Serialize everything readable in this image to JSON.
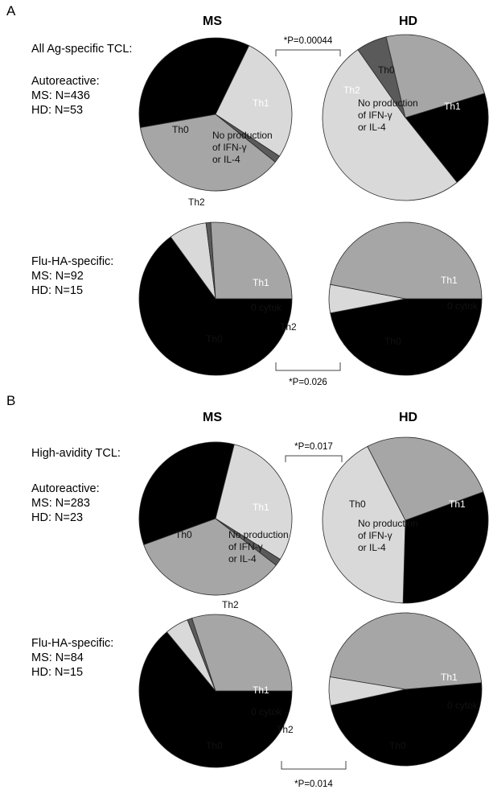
{
  "panels": [
    {
      "letter": "A",
      "col_ms": "MS",
      "col_hd": "HD",
      "rows": [
        {
          "heading": "All Ag-specific TCL:",
          "group": "Autoreactive:",
          "n_ms": "MS: N=436",
          "n_hd": "HD: N=53",
          "pvalue": "*P=0.00044"
        },
        {
          "heading": "",
          "group": "Flu-HA-specific:",
          "n_ms": "MS: N=92",
          "n_hd": "HD: N=15",
          "pvalue": "*P=0.026"
        }
      ]
    },
    {
      "letter": "B",
      "col_ms": "MS",
      "col_hd": "HD",
      "rows": [
        {
          "heading": "High-avidity TCL:",
          "group": "Autoreactive:",
          "n_ms": "MS: N=283",
          "n_hd": "HD: N=23",
          "pvalue": "*P=0.017"
        },
        {
          "heading": "",
          "group": "Flu-HA-specific:",
          "n_ms": "MS: N=84",
          "n_hd": "HD: N=15",
          "pvalue": "*P=0.014"
        }
      ]
    }
  ],
  "colors": {
    "Th1": "#000000",
    "Th0": "#a6a6a6",
    "Th2": "#5a5a5a",
    "none": "#d9d9d9"
  },
  "chart_data": [
    {
      "type": "pie",
      "panel": "A",
      "group": "MS",
      "population": "Autoreactive",
      "slices": [
        {
          "category": "Th1",
          "label": "Th1",
          "value": 35
        },
        {
          "category": "none",
          "label_lines": [
            "No production",
            "of IFN-γ",
            "or IL-4"
          ],
          "value": 27
        },
        {
          "category": "Th2",
          "label": "Th2",
          "value": 1.5
        },
        {
          "category": "Th0",
          "label": "Th0",
          "value": 36.5
        }
      ]
    },
    {
      "type": "pie",
      "panel": "A",
      "group": "HD",
      "population": "Autoreactive",
      "slices": [
        {
          "category": "Th1",
          "label": "Th1",
          "value": 19
        },
        {
          "category": "none",
          "label_lines": [
            "No production",
            "of IFN-γ",
            "or IL-4"
          ],
          "value": 51
        },
        {
          "category": "Th2",
          "label": "Th2",
          "value": 6
        },
        {
          "category": "Th0",
          "label": "Th0",
          "value": 24
        }
      ]
    },
    {
      "type": "pie",
      "panel": "A",
      "group": "MS",
      "population": "Flu-HA-specific",
      "slices": [
        {
          "category": "Th1",
          "label": "Th1",
          "value": 65
        },
        {
          "category": "none",
          "label": "0 cytok",
          "value": 8
        },
        {
          "category": "Th2",
          "label": "Th2",
          "value": 1
        },
        {
          "category": "Th0",
          "label": "Th0",
          "value": 26
        }
      ]
    },
    {
      "type": "pie",
      "panel": "A",
      "group": "HD",
      "population": "Flu-HA-specific",
      "slices": [
        {
          "category": "Th1",
          "label": "Th1",
          "value": 47
        },
        {
          "category": "none",
          "label": "0 cytok",
          "value": 6
        },
        {
          "category": "Th0",
          "label": "Th0",
          "value": 47
        }
      ]
    },
    {
      "type": "pie",
      "panel": "B",
      "group": "MS",
      "population": "Autoreactive",
      "slices": [
        {
          "category": "Th1",
          "label": "Th1",
          "value": 34.5
        },
        {
          "category": "none",
          "label_lines": [
            "No production",
            "of IFN-γ",
            "or IL-4"
          ],
          "value": 30
        },
        {
          "category": "Th2",
          "label": "Th2",
          "value": 1.5
        },
        {
          "category": "Th0",
          "label": "Th0",
          "value": 34
        }
      ]
    },
    {
      "type": "pie",
      "panel": "B",
      "group": "HD",
      "population": "Autoreactive",
      "slices": [
        {
          "category": "Th1",
          "label": "Th1",
          "value": 31
        },
        {
          "category": "none",
          "label_lines": [
            "No production",
            "of IFN-γ",
            "or IL-4"
          ],
          "value": 42
        },
        {
          "category": "Th0",
          "label": "Th0",
          "value": 27
        }
      ]
    },
    {
      "type": "pie",
      "panel": "B",
      "group": "MS",
      "population": "Flu-HA-specific",
      "slices": [
        {
          "category": "Th1",
          "label": "Th1",
          "value": 64
        },
        {
          "category": "none",
          "label": "0 cytok",
          "value": 5
        },
        {
          "category": "Th2",
          "label": "Th2",
          "value": 1
        },
        {
          "category": "Th0",
          "label": "Th0",
          "value": 30
        }
      ]
    },
    {
      "type": "pie",
      "panel": "B",
      "group": "HD",
      "population": "Flu-HA-specific",
      "slices": [
        {
          "category": "Th1",
          "label": "Th1",
          "value": 48
        },
        {
          "category": "none",
          "label": "0 cytok",
          "value": 6
        },
        {
          "category": "Th0",
          "label": "Th0",
          "value": 46
        }
      ]
    }
  ]
}
